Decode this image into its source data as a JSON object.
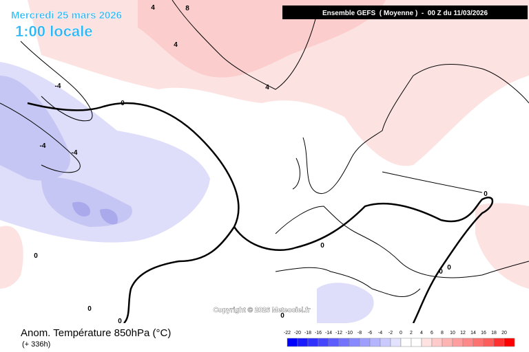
{
  "header": {
    "title": "Mercredi 25 mars 2026",
    "subtitle": "1:00 locale",
    "model": "Ensemble GEFS  ( Moyenne )  -  00 Z du 11/03/2026"
  },
  "footer": {
    "field": "Anom. Température 850hPa (°C)",
    "lead": "(+ 336h)",
    "copyright": "Copyright © 2026 Meteociel.fr"
  },
  "legend": {
    "labels": [
      "-22",
      "-20",
      "-18",
      "-16",
      "-14",
      "-12",
      "-10",
      "-8",
      "-6",
      "-4",
      "-2",
      "0",
      "2",
      "4",
      "6",
      "8",
      "10",
      "12",
      "14",
      "16",
      "18",
      "20"
    ],
    "colors": [
      "#0000ff",
      "#1a1aff",
      "#3030ff",
      "#4646ff",
      "#5c5cff",
      "#7272ff",
      "#8888ff",
      "#9e9eff",
      "#b4b4ff",
      "#cacaff",
      "#e2e2ff",
      "#ffffff",
      "#ffffff",
      "#ffe2e2",
      "#ffcaca",
      "#ffb4b4",
      "#ff9e9e",
      "#ff8888",
      "#ff7272",
      "#ff5c5c",
      "#ff3030",
      "#ff0000"
    ]
  },
  "map": {
    "contour_labels": [
      "4",
      "8",
      "4",
      "4",
      "-4",
      "0",
      "-4",
      "-4",
      "0",
      "0",
      "0",
      "0",
      "0",
      "0",
      "0",
      "0"
    ]
  }
}
